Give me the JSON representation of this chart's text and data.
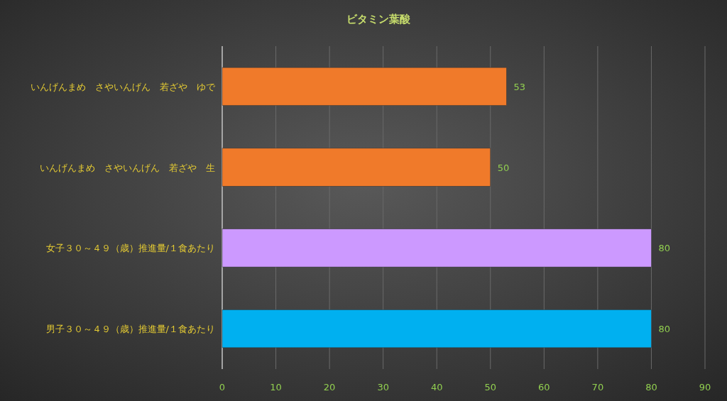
{
  "chart_data": {
    "type": "bar",
    "title": "ビタミン葉酸",
    "orientation": "horizontal",
    "categories": [
      "いんげんまめ　さやいんげん　若ざや　ゆで",
      "いんげんまめ　さやいんげん　若ざや　生",
      "女子３０～４９（歳）推進量/１食あたり",
      "男子３０～４９（歳）推進量/１食あたり"
    ],
    "values": [
      53,
      50,
      80,
      80
    ],
    "colors": [
      "#f07a2a",
      "#f07a2a",
      "#cc99ff",
      "#00b0f0"
    ],
    "xlim": [
      0,
      90
    ],
    "xticks": [
      0,
      10,
      20,
      30,
      40,
      50,
      60,
      70,
      80,
      90
    ],
    "grid": "x",
    "data_labels": true
  }
}
